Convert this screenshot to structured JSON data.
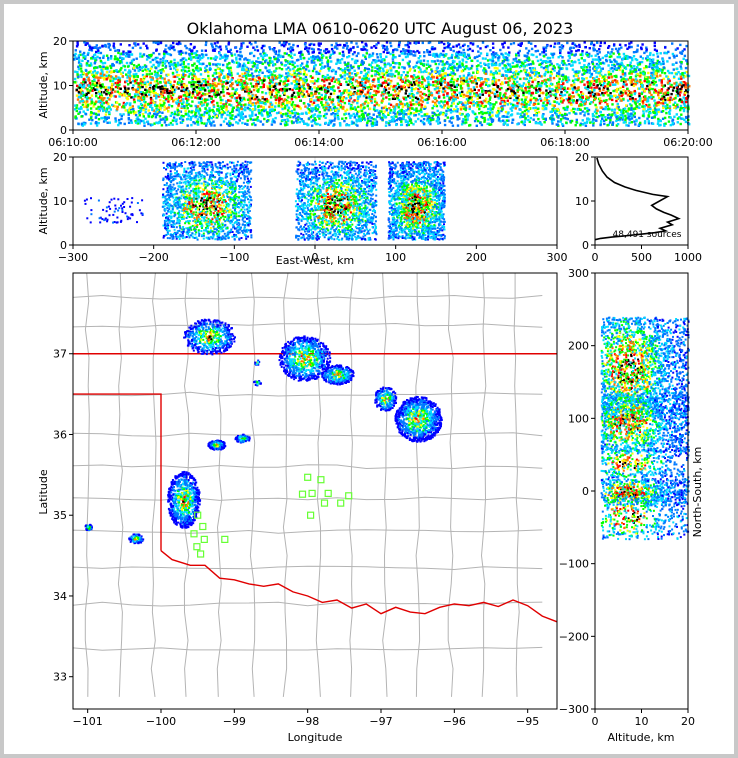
{
  "title": "Oklahoma LMA 0610-0620 UTC August 06, 2023",
  "colors": {
    "border": "#e00000",
    "counties": "#b4b4b4",
    "stations": "#66ff33"
  },
  "chart_data": [
    {
      "id": "time-height",
      "type": "heatmap",
      "ylabel": "Altitude, km",
      "ylim": [
        0,
        20
      ],
      "yticks": [
        "0",
        "10",
        "20"
      ],
      "xticks": [
        "06:10:00",
        "06:12:00",
        "06:14:00",
        "06:16:00",
        "06:18:00",
        "06:20:00"
      ],
      "xrange": [
        "06:10:00",
        "06:20:00"
      ]
    },
    {
      "id": "ew-height",
      "type": "heatmap",
      "xlabel": "East-West, km",
      "ylabel": "Altitude, km",
      "xlim": [
        -300,
        300
      ],
      "ylim": [
        0,
        20
      ],
      "xticks": [
        "−300",
        "−200",
        "−100",
        "0",
        "100",
        "200",
        "300"
      ],
      "yticks": [
        "0",
        "10",
        "20"
      ],
      "clusters_x_km": [
        [
          -190,
          -80
        ],
        [
          -25,
          75
        ],
        [
          90,
          160
        ]
      ]
    },
    {
      "id": "alt-histogram",
      "type": "line",
      "xlim": [
        0,
        1000
      ],
      "ylim": [
        0,
        20
      ],
      "xticks": [
        "0",
        "500",
        "1000"
      ],
      "yticks": [
        "0",
        "10",
        "20"
      ],
      "annotation": "48,491 sources",
      "x": [
        0,
        60,
        180,
        330,
        470,
        640,
        760,
        700,
        830,
        780,
        900,
        820,
        740,
        660,
        610,
        780,
        620,
        440,
        320,
        210,
        130,
        80,
        40,
        20
      ],
      "y": [
        1.2,
        1.5,
        1.8,
        2.1,
        2.4,
        2.8,
        3.2,
        3.8,
        4.6,
        5.2,
        6.0,
        6.8,
        7.4,
        8.2,
        9.0,
        11.0,
        11.5,
        12.4,
        13.2,
        14.2,
        15.4,
        16.8,
        18.4,
        19.8
      ]
    },
    {
      "id": "plan-view",
      "type": "heatmap",
      "xlabel": "Longitude",
      "ylabel": "Latitude",
      "xlim": [
        -101.2,
        -94.6
      ],
      "ylim": [
        32.6,
        38.0
      ],
      "xticks": [
        "−101",
        "−100",
        "−99",
        "−98",
        "−97",
        "−96",
        "−95"
      ],
      "xtick_values": [
        -101,
        -100,
        -99,
        -98,
        -97,
        -96,
        -95
      ],
      "yticks": [
        "33",
        "34",
        "35",
        "36",
        "37"
      ],
      "ytick_values": [
        33,
        34,
        35,
        36,
        37
      ],
      "stations": [
        [
          -98.0,
          35.47
        ],
        [
          -97.82,
          35.44
        ],
        [
          -98.07,
          35.26
        ],
        [
          -97.94,
          35.27
        ],
        [
          -97.77,
          35.15
        ],
        [
          -97.72,
          35.27
        ],
        [
          -97.55,
          35.15
        ],
        [
          -97.44,
          35.24
        ],
        [
          -97.96,
          35.0
        ],
        [
          -99.5,
          35.0
        ],
        [
          -99.43,
          34.86
        ],
        [
          -99.55,
          34.77
        ],
        [
          -99.41,
          34.7
        ],
        [
          -99.13,
          34.7
        ],
        [
          -99.51,
          34.61
        ],
        [
          -99.46,
          34.52
        ]
      ]
    },
    {
      "id": "ns-height",
      "type": "heatmap",
      "xlabel": "Altitude, km",
      "ylabel": "North-South, km",
      "xlim": [
        0,
        20
      ],
      "ylim": [
        -300,
        300
      ],
      "xticks": [
        "0",
        "10",
        "20"
      ],
      "yticks": [
        "−300",
        "−200",
        "−100",
        "0",
        "100",
        "200",
        "300"
      ]
    }
  ]
}
